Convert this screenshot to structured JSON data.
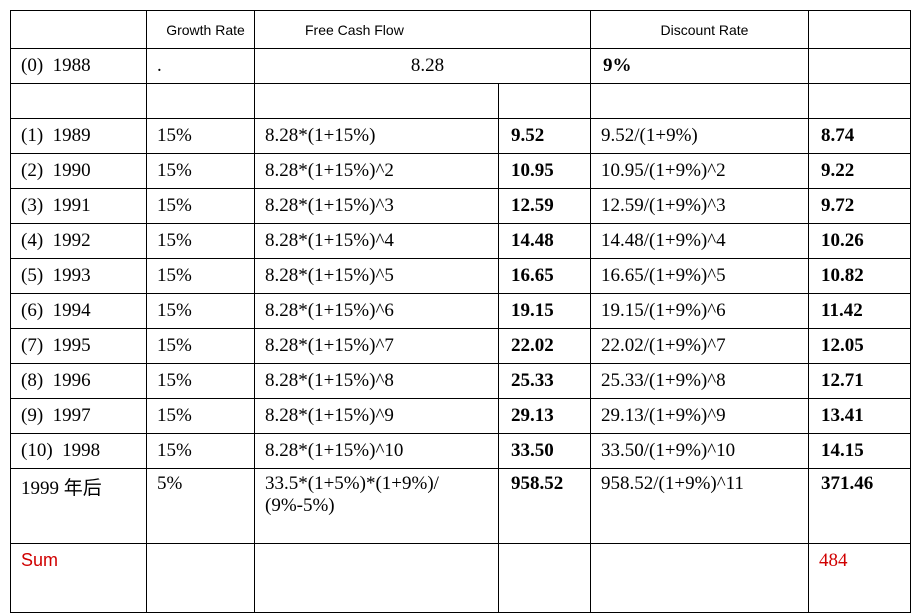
{
  "header": {
    "growth_rate": "Growth Rate",
    "free_cash_flow": "Free Cash Flow",
    "discount_rate": "Discount Rate"
  },
  "base_row": {
    "label": "(0)  1988",
    "growth": ".",
    "fcf": "8.28",
    "discount": "9%"
  },
  "rows": [
    {
      "label": "(1)  1989",
      "growth": "15%",
      "formula": "8.28*(1+15%)",
      "fcf": "9.52",
      "discount_formula": "9.52/(1+9%)",
      "pv": "8.74"
    },
    {
      "label": "(2)  1990",
      "growth": "15%",
      "formula": "8.28*(1+15%)^2",
      "fcf": "10.95",
      "discount_formula": "10.95/(1+9%)^2",
      "pv": "9.22"
    },
    {
      "label": "(3)  1991",
      "growth": "15%",
      "formula": "8.28*(1+15%)^3",
      "fcf": "12.59",
      "discount_formula": "12.59/(1+9%)^3",
      "pv": "9.72"
    },
    {
      "label": "(4)  1992",
      "growth": "15%",
      "formula": "8.28*(1+15%)^4",
      "fcf": "14.48",
      "discount_formula": "14.48/(1+9%)^4",
      "pv": "10.26"
    },
    {
      "label": "(5)  1993",
      "growth": "15%",
      "formula": "8.28*(1+15%)^5",
      "fcf": "16.65",
      "discount_formula": "16.65/(1+9%)^5",
      "pv": "10.82"
    },
    {
      "label": "(6)  1994",
      "growth": "15%",
      "formula": "8.28*(1+15%)^6",
      "fcf": "19.15",
      "discount_formula": "19.15/(1+9%)^6",
      "pv": "11.42"
    },
    {
      "label": "(7)  1995",
      "growth": "15%",
      "formula": "8.28*(1+15%)^7",
      "fcf": "22.02",
      "discount_formula": "22.02/(1+9%)^7",
      "pv": "12.05"
    },
    {
      "label": "(8)  1996",
      "growth": "15%",
      "formula": "8.28*(1+15%)^8",
      "fcf": "25.33",
      "discount_formula": "25.33/(1+9%)^8",
      "pv": "12.71"
    },
    {
      "label": "(9)  1997",
      "growth": "15%",
      "formula": "8.28*(1+15%)^9",
      "fcf": "29.13",
      "discount_formula": "29.13/(1+9%)^9",
      "pv": "13.41"
    },
    {
      "label": "(10)  1998",
      "growth": "15%",
      "formula": "8.28*(1+15%)^10",
      "fcf": "33.50",
      "discount_formula": "33.50/(1+9%)^10",
      "pv": "14.15"
    }
  ],
  "terminal_row": {
    "label": "1999 年后",
    "growth": "5%",
    "formula_lines": [
      "33.5*(1+5%)*(1+9%)/",
      "(9%-5%)"
    ],
    "fcf": "958.52",
    "discount_formula": "958.52/(1+9%)^11",
    "pv": "371.46"
  },
  "sum_row": {
    "label": "Sum",
    "value": "484"
  }
}
